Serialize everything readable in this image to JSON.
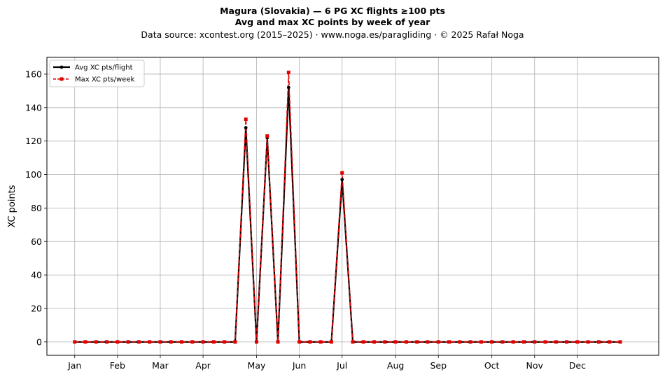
{
  "title": {
    "line1": "Magura (Slovakia)  —  6 PG XC flights ≥100 pts",
    "line2": "Avg and max XC points by week of year",
    "line3": "Data source: xcontest.org (2015–2025)  ·  www.noga.es/paragliding  ·  © 2025 Rafał Noga"
  },
  "chart_data": {
    "type": "line",
    "title": "Magura (Slovakia)  —  6 PG XC flights ≥100 pts",
    "subtitle": "Avg and max XC points by week of year",
    "xlabel": "",
    "ylabel": "XC points",
    "xlim": [
      -2.6,
      54.6
    ],
    "ylim": [
      -8,
      170
    ],
    "grid": true,
    "legend_position": "top-left",
    "x_ticks": [
      {
        "label": "Jan",
        "x": 0
      },
      {
        "label": "Feb",
        "x": 4
      },
      {
        "label": "Mar",
        "x": 8
      },
      {
        "label": "Apr",
        "x": 12
      },
      {
        "label": "May",
        "x": 17
      },
      {
        "label": "Jun",
        "x": 21
      },
      {
        "label": "Jul",
        "x": 25
      },
      {
        "label": "Aug",
        "x": 30
      },
      {
        "label": "Sep",
        "x": 34
      },
      {
        "label": "Oct",
        "x": 39
      },
      {
        "label": "Nov",
        "x": 43
      },
      {
        "label": "Dec",
        "x": 47
      }
    ],
    "y_ticks": [
      0,
      20,
      40,
      60,
      80,
      100,
      120,
      140,
      160
    ],
    "x": [
      0,
      1,
      2,
      3,
      4,
      5,
      6,
      7,
      8,
      9,
      10,
      11,
      12,
      13,
      14,
      15,
      16,
      17,
      18,
      19,
      20,
      21,
      22,
      23,
      24,
      25,
      26,
      27,
      28,
      29,
      30,
      31,
      32,
      33,
      34,
      35,
      36,
      37,
      38,
      39,
      40,
      41,
      42,
      43,
      44,
      45,
      46,
      47,
      48,
      49,
      50,
      51
    ],
    "series": [
      {
        "name": "Avg XC pts/flight",
        "color": "#000000",
        "marker": "circle",
        "line_style": "solid",
        "values": [
          0,
          0,
          0,
          0,
          0,
          0,
          0,
          0,
          0,
          0,
          0,
          0,
          0,
          0,
          0,
          0,
          128,
          0,
          122,
          0,
          152,
          0,
          0,
          0,
          0,
          97,
          0,
          0,
          0,
          0,
          0,
          0,
          0,
          0,
          0,
          0,
          0,
          0,
          0,
          0,
          0,
          0,
          0,
          0,
          0,
          0,
          0,
          0,
          0,
          0,
          0,
          0
        ]
      },
      {
        "name": "Max XC pts/week",
        "color": "#e00000",
        "marker": "square",
        "line_style": "dashed",
        "values": [
          0,
          0,
          0,
          0,
          0,
          0,
          0,
          0,
          0,
          0,
          0,
          0,
          0,
          0,
          0,
          0,
          133,
          0,
          123,
          0,
          161,
          0,
          0,
          0,
          0,
          101,
          0,
          0,
          0,
          0,
          0,
          0,
          0,
          0,
          0,
          0,
          0,
          0,
          0,
          0,
          0,
          0,
          0,
          0,
          0,
          0,
          0,
          0,
          0,
          0,
          0,
          0
        ]
      }
    ]
  }
}
